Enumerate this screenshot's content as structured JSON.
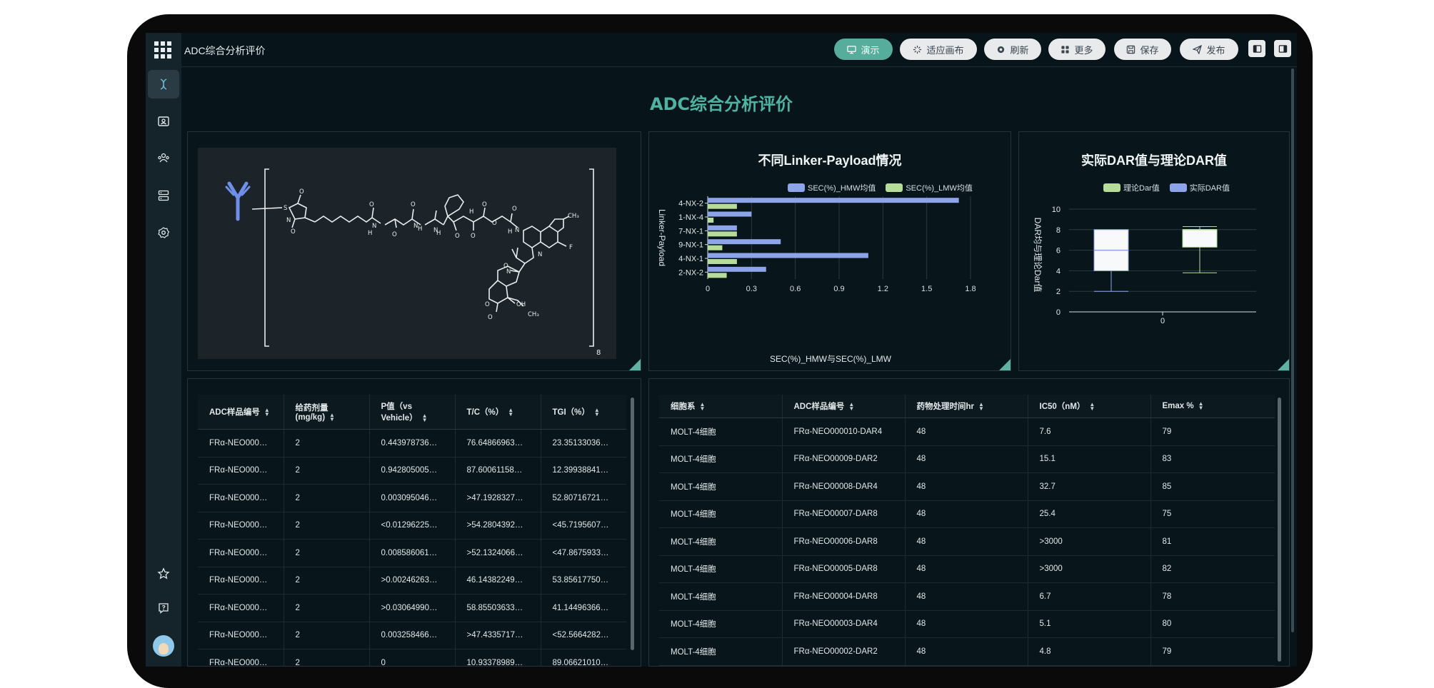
{
  "app": {
    "title": "ADC综合分析评价"
  },
  "toolbar": {
    "present": "演示",
    "fit": "适应画布",
    "refresh": "刷新",
    "more": "更多",
    "save": "保存",
    "publish": "发布"
  },
  "page": {
    "heading": "ADC综合分析评价"
  },
  "structure": {
    "subscript": "8"
  },
  "chart_data": [
    {
      "type": "bar",
      "orientation": "horizontal",
      "title": "不同Linker-Payload情况",
      "xlabel": "SEC(%)_HMW与SEC(%)_LMW",
      "ylabel": "Linker-Payload",
      "categories": [
        "4-NX-2",
        "1-NX-4",
        "7-NX-1",
        "9-NX-1",
        "4-NX-1",
        "2-NX-2"
      ],
      "series": [
        {
          "name": "SEC(%)_HMW均值",
          "color": "#8ea4e8",
          "values": [
            1.72,
            0.3,
            0.2,
            0.5,
            1.1,
            0.4
          ]
        },
        {
          "name": "SEC(%)_LMW均值",
          "color": "#b5dc98",
          "values": [
            0.2,
            0.04,
            0.2,
            0.1,
            0.2,
            0.13
          ]
        }
      ],
      "xticks": [
        "0",
        "0.3",
        "0.6",
        "0.9",
        "1.2",
        "1.5",
        "1.8"
      ],
      "xlim": [
        0,
        1.8
      ],
      "legend": "top-right",
      "grid": true
    },
    {
      "type": "box",
      "title": "实际DAR值与理论DAR值",
      "ylabel": "DAR均与理论Dar值",
      "categories": [
        "0"
      ],
      "series": [
        {
          "name": "理论Dar值",
          "color": "#b5dc98",
          "box": {
            "min": 3.8,
            "q1": 6.3,
            "median": 8.0,
            "q3": 8.0,
            "max": 8.3
          }
        },
        {
          "name": "实际DAR值",
          "color": "#8ea4e8",
          "box": {
            "min": 2.0,
            "q1": 4.0,
            "median": 6.0,
            "q3": 8.0,
            "max": 8.0
          }
        }
      ],
      "yticks": [
        "0",
        "2",
        "4",
        "6",
        "8",
        "10"
      ],
      "ylim": [
        0,
        10
      ],
      "legend": "top",
      "grid": true
    }
  ],
  "table_left": {
    "headers": [
      "ADC样品编号",
      "给药剂量(mg/kg)",
      "P值（vs Vehicle）",
      "T/C（%）",
      "TGI（%）"
    ],
    "rows": [
      [
        "FRα-NEO000…",
        "2",
        "0.443978736…",
        "76.64866963…",
        "23.35133036…"
      ],
      [
        "FRα-NEO000…",
        "2",
        "0.942805005…",
        "87.60061158…",
        "12.39938841…"
      ],
      [
        "FRα-NEO000…",
        "2",
        "0.003095046…",
        ">47.1928327…",
        "52.80716721…"
      ],
      [
        "FRα-NEO000…",
        "2",
        "<0.01296225…",
        ">54.2804392…",
        "<45.7195607…"
      ],
      [
        "FRα-NEO000…",
        "2",
        "0.008586061…",
        ">52.1324066…",
        "<47.8675933…"
      ],
      [
        "FRα-NEO000…",
        "2",
        ">0.00246263…",
        "46.14382249…",
        "53.85617750…"
      ],
      [
        "FRα-NEO000…",
        "2",
        ">0.03064990…",
        "58.85503633…",
        "41.14496366…"
      ],
      [
        "FRα-NEO000…",
        "2",
        "0.003258466…",
        ">47.4335717…",
        "<52.5664282…"
      ],
      [
        "FRα-NEO000…",
        "2",
        "0",
        "10.93378989…",
        "89.06621010…"
      ]
    ]
  },
  "table_right": {
    "headers": [
      "细胞系",
      "ADC样品编号",
      "药物处理时间hr",
      "IC50（nM）",
      "Emax %"
    ],
    "rows": [
      [
        "MOLT-4细胞",
        "FRα-NEO000010-DAR4",
        "48",
        "7.6",
        "79"
      ],
      [
        "MOLT-4细胞",
        "FRα-NEO00009-DAR2",
        "48",
        "15.1",
        "83"
      ],
      [
        "MOLT-4细胞",
        "FRα-NEO00008-DAR4",
        "48",
        "32.7",
        "85"
      ],
      [
        "MOLT-4细胞",
        "FRα-NEO00007-DAR8",
        "48",
        "25.4",
        "75"
      ],
      [
        "MOLT-4细胞",
        "FRα-NEO00006-DAR8",
        "48",
        ">3000",
        "81"
      ],
      [
        "MOLT-4细胞",
        "FRα-NEO00005-DAR8",
        "48",
        ">3000",
        "82"
      ],
      [
        "MOLT-4细胞",
        "FRα-NEO00004-DAR8",
        "48",
        "6.7",
        "78"
      ],
      [
        "MOLT-4细胞",
        "FRα-NEO00003-DAR4",
        "48",
        "5.1",
        "80"
      ],
      [
        "MOLT-4细胞",
        "FRα-NEO00002-DAR2",
        "48",
        "4.8",
        "79"
      ]
    ]
  },
  "colors": {
    "accent": "#4fb2a2",
    "background": "#07141a",
    "panel_border": "#24343c"
  }
}
